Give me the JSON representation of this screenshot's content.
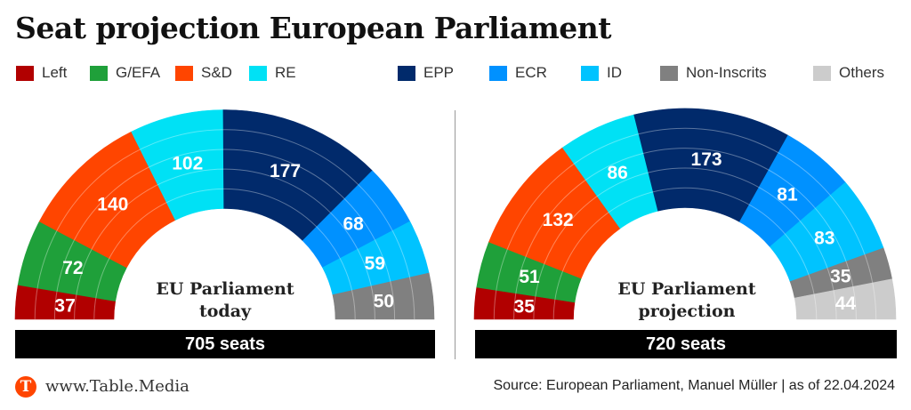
{
  "header": {
    "title": "Seat projection European Parliament"
  },
  "legend": [
    {
      "key": "left",
      "label": "Left",
      "color": "#B10000"
    },
    {
      "key": "gefa",
      "label": "G/EFA",
      "color": "#1FA03A"
    },
    {
      "key": "sd",
      "label": "S&D",
      "color": "#FF4500"
    },
    {
      "key": "re",
      "label": "RE",
      "color": "#00E1F5"
    },
    {
      "key": "epp",
      "label": "EPP",
      "color": "#012A6B"
    },
    {
      "key": "ecr",
      "label": "ECR",
      "color": "#0091FF"
    },
    {
      "key": "id",
      "label": "ID",
      "color": "#00C3FF"
    },
    {
      "key": "ni",
      "label": "Non-Inscrits",
      "color": "#808080"
    },
    {
      "key": "others",
      "label": "Others",
      "color": "#CCCCCC"
    }
  ],
  "chart_data": [
    {
      "type": "pie",
      "subtype": "parliament-semicircle",
      "title": "EU Parliament today",
      "title_lines": [
        "EU Parliament",
        "today"
      ],
      "total_label": "705 seats",
      "total": 705,
      "categories": [
        "Left",
        "G/EFA",
        "S&D",
        "RE",
        "EPP",
        "ECR",
        "ID",
        "Non-Inscrits"
      ],
      "values": [
        37,
        72,
        140,
        102,
        177,
        68,
        59,
        50
      ],
      "colors": [
        "#B10000",
        "#1FA03A",
        "#FF4500",
        "#00E1F5",
        "#012A6B",
        "#0091FF",
        "#00C3FF",
        "#808080"
      ]
    },
    {
      "type": "pie",
      "subtype": "parliament-semicircle",
      "title": "EU Parliament projection",
      "title_lines": [
        "EU Parliament",
        "projection"
      ],
      "total_label": "720 seats",
      "total": 720,
      "categories": [
        "Left",
        "G/EFA",
        "S&D",
        "RE",
        "EPP",
        "ECR",
        "ID",
        "Non-Inscrits",
        "Others"
      ],
      "values": [
        35,
        51,
        132,
        86,
        173,
        81,
        83,
        35,
        44
      ],
      "colors": [
        "#B10000",
        "#1FA03A",
        "#FF4500",
        "#00E1F5",
        "#012A6B",
        "#0091FF",
        "#00C3FF",
        "#808080",
        "#CCCCCC"
      ]
    }
  ],
  "footer": {
    "logo_letter": "T",
    "site": "www.Table.Media",
    "source": "Source: European Parliament, Manuel Müller | as of 22.04.2024"
  }
}
